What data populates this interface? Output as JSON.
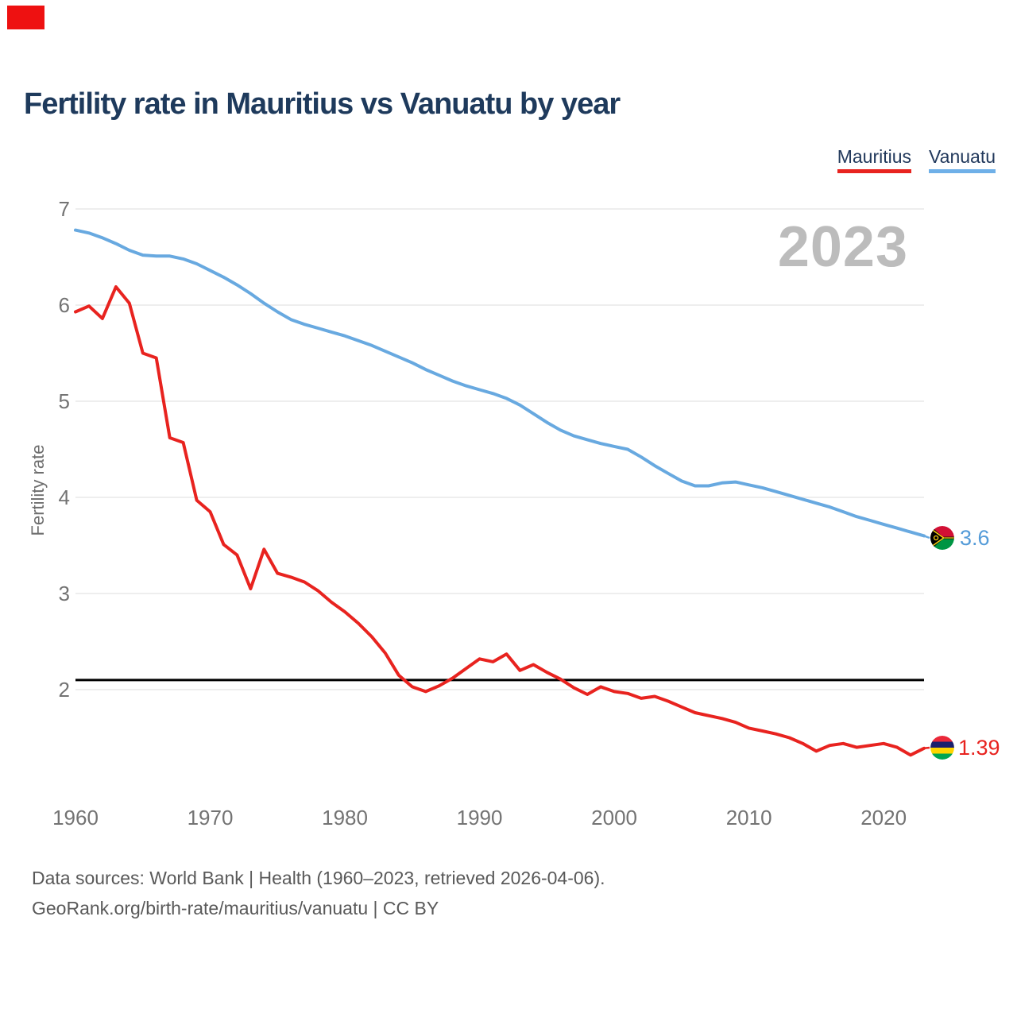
{
  "overlay": {
    "annotation_color": "#ee1111"
  },
  "title": "Fertility rate in Mauritius vs Vanuatu by year",
  "legend": [
    {
      "label": "Mauritius",
      "color": "#e8231f"
    },
    {
      "label": "Vanuatu",
      "color": "#6fb0e8"
    }
  ],
  "watermark": "2023",
  "y_axis": {
    "label": "Fertility rate",
    "ticks": [
      7,
      6,
      5,
      4,
      3,
      2
    ]
  },
  "x_axis": {
    "ticks": [
      1960,
      1970,
      1980,
      1990,
      2000,
      2010,
      2020
    ]
  },
  "reference_line": {
    "value": 2.1,
    "color": "#000000"
  },
  "end_labels": {
    "vanuatu": {
      "value": "3.6",
      "color": "#549bd8",
      "flag": "vanuatu-flag-icon"
    },
    "mauritius": {
      "value": "1.39",
      "color": "#e8231f",
      "flag": "mauritius-flag-icon"
    }
  },
  "footer": {
    "line1": "Data sources: World Bank | Health (1960–2023, retrieved 2026-04-06).",
    "line2": "GeoRank.org/birth-rate/mauritius/vanuatu | CC BY"
  },
  "chart_data": {
    "type": "line",
    "title": "Fertility rate in Mauritius vs Vanuatu by year",
    "ylabel": "Fertility rate",
    "ylim": [
      1.2,
      7.0
    ],
    "grid": "horizontal",
    "legend_position": "top-right",
    "x_range": [
      1960,
      2023
    ],
    "years": [
      1960,
      1961,
      1962,
      1963,
      1964,
      1965,
      1966,
      1967,
      1968,
      1969,
      1970,
      1971,
      1972,
      1973,
      1974,
      1975,
      1976,
      1977,
      1978,
      1979,
      1980,
      1981,
      1982,
      1983,
      1984,
      1985,
      1986,
      1987,
      1988,
      1989,
      1990,
      1991,
      1992,
      1993,
      1994,
      1995,
      1996,
      1997,
      1998,
      1999,
      2000,
      2001,
      2002,
      2003,
      2004,
      2005,
      2006,
      2007,
      2008,
      2009,
      2010,
      2011,
      2012,
      2013,
      2014,
      2015,
      2016,
      2017,
      2018,
      2019,
      2020,
      2021,
      2022,
      2023
    ],
    "series": [
      {
        "name": "Mauritius",
        "color": "#e8231f",
        "values": [
          5.93,
          5.99,
          5.86,
          6.19,
          6.02,
          5.5,
          5.45,
          4.62,
          4.57,
          3.97,
          3.85,
          3.51,
          3.4,
          3.05,
          3.46,
          3.21,
          3.17,
          3.12,
          3.03,
          2.91,
          2.81,
          2.69,
          2.55,
          2.38,
          2.15,
          2.03,
          1.98,
          2.04,
          2.12,
          2.22,
          2.32,
          2.29,
          2.37,
          2.2,
          2.26,
          2.18,
          2.11,
          2.02,
          1.95,
          2.03,
          1.98,
          1.96,
          1.91,
          1.93,
          1.88,
          1.82,
          1.76,
          1.73,
          1.7,
          1.66,
          1.6,
          1.57,
          1.54,
          1.5,
          1.44,
          1.36,
          1.42,
          1.44,
          1.4,
          1.42,
          1.44,
          1.4,
          1.32,
          1.39
        ]
      },
      {
        "name": "Vanuatu",
        "color": "#68a9e0",
        "values": [
          6.78,
          6.75,
          6.7,
          6.64,
          6.57,
          6.52,
          6.51,
          6.51,
          6.48,
          6.43,
          6.36,
          6.29,
          6.21,
          6.12,
          6.02,
          5.93,
          5.85,
          5.8,
          5.76,
          5.72,
          5.68,
          5.63,
          5.58,
          5.52,
          5.46,
          5.4,
          5.33,
          5.27,
          5.21,
          5.16,
          5.12,
          5.08,
          5.03,
          4.96,
          4.87,
          4.78,
          4.7,
          4.64,
          4.6,
          4.56,
          4.53,
          4.5,
          4.42,
          4.33,
          4.25,
          4.17,
          4.12,
          4.12,
          4.15,
          4.16,
          4.13,
          4.1,
          4.06,
          4.02,
          3.98,
          3.94,
          3.9,
          3.85,
          3.8,
          3.76,
          3.72,
          3.68,
          3.64,
          3.6
        ]
      }
    ],
    "reference_line_value": 2.1,
    "end_values": {
      "Mauritius": 1.39,
      "Vanuatu": 3.6
    }
  }
}
